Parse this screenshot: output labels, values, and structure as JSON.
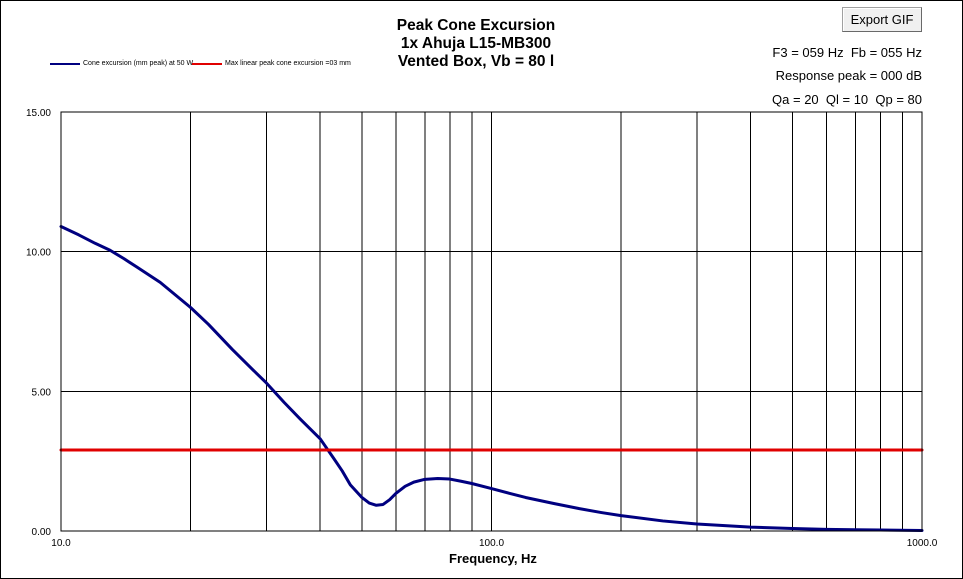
{
  "window": {
    "title_lines": [
      "Peak Cone Excursion",
      "1x Ahuja L15-MB300",
      "Vented Box, Vb = 80 l"
    ],
    "export_label": "Export GIF",
    "stats": [
      "F3 = 059 Hz  Fb = 055 Hz",
      "Response peak = 000 dB",
      "Qa = 20  Ql = 10  Qp = 80"
    ]
  },
  "chart_data": {
    "type": "line",
    "title": "Peak Cone Excursion",
    "xlabel": "Frequency, Hz",
    "ylabel": "",
    "xscale": "log",
    "xlim": [
      10,
      1000
    ],
    "ylim": [
      0,
      15
    ],
    "grid": true,
    "legend_placement": "top-left",
    "x_tick_labels": [
      "10.0",
      "100.0",
      "1000.0"
    ],
    "y_tick_labels": [
      "0.00",
      "5.00",
      "10.00",
      "15.00"
    ],
    "x_gridlines": [
      10,
      20,
      30,
      40,
      50,
      60,
      70,
      80,
      90,
      100,
      200,
      300,
      400,
      500,
      600,
      700,
      800,
      900,
      1000
    ],
    "y_gridlines": [
      0,
      5,
      10,
      15
    ],
    "series": [
      {
        "name": "Cone excursion (mm peak) at 50 W",
        "color": "#000080",
        "x": [
          10,
          11,
          12,
          13,
          14,
          15,
          17,
          20,
          22,
          25,
          28,
          30,
          33,
          36,
          40,
          43,
          45,
          47,
          50,
          52,
          54,
          56,
          58,
          60,
          63,
          66,
          70,
          75,
          80,
          85,
          90,
          100,
          110,
          120,
          140,
          160,
          180,
          200,
          250,
          300,
          400,
          500,
          600,
          700,
          800,
          1000
        ],
        "y": [
          10.9,
          10.6,
          10.3,
          10.05,
          9.75,
          9.45,
          8.9,
          8.0,
          7.4,
          6.5,
          5.75,
          5.3,
          4.6,
          4.0,
          3.3,
          2.6,
          2.15,
          1.65,
          1.2,
          1.0,
          0.92,
          0.95,
          1.12,
          1.35,
          1.6,
          1.75,
          1.85,
          1.88,
          1.86,
          1.78,
          1.7,
          1.52,
          1.35,
          1.2,
          0.98,
          0.8,
          0.66,
          0.55,
          0.36,
          0.25,
          0.14,
          0.09,
          0.06,
          0.045,
          0.035,
          0.02
        ]
      },
      {
        "name": "Max linear peak cone excursion =03 mm",
        "color": "#e00000",
        "x": [
          10,
          1000
        ],
        "y": [
          2.9,
          2.9
        ]
      }
    ]
  }
}
